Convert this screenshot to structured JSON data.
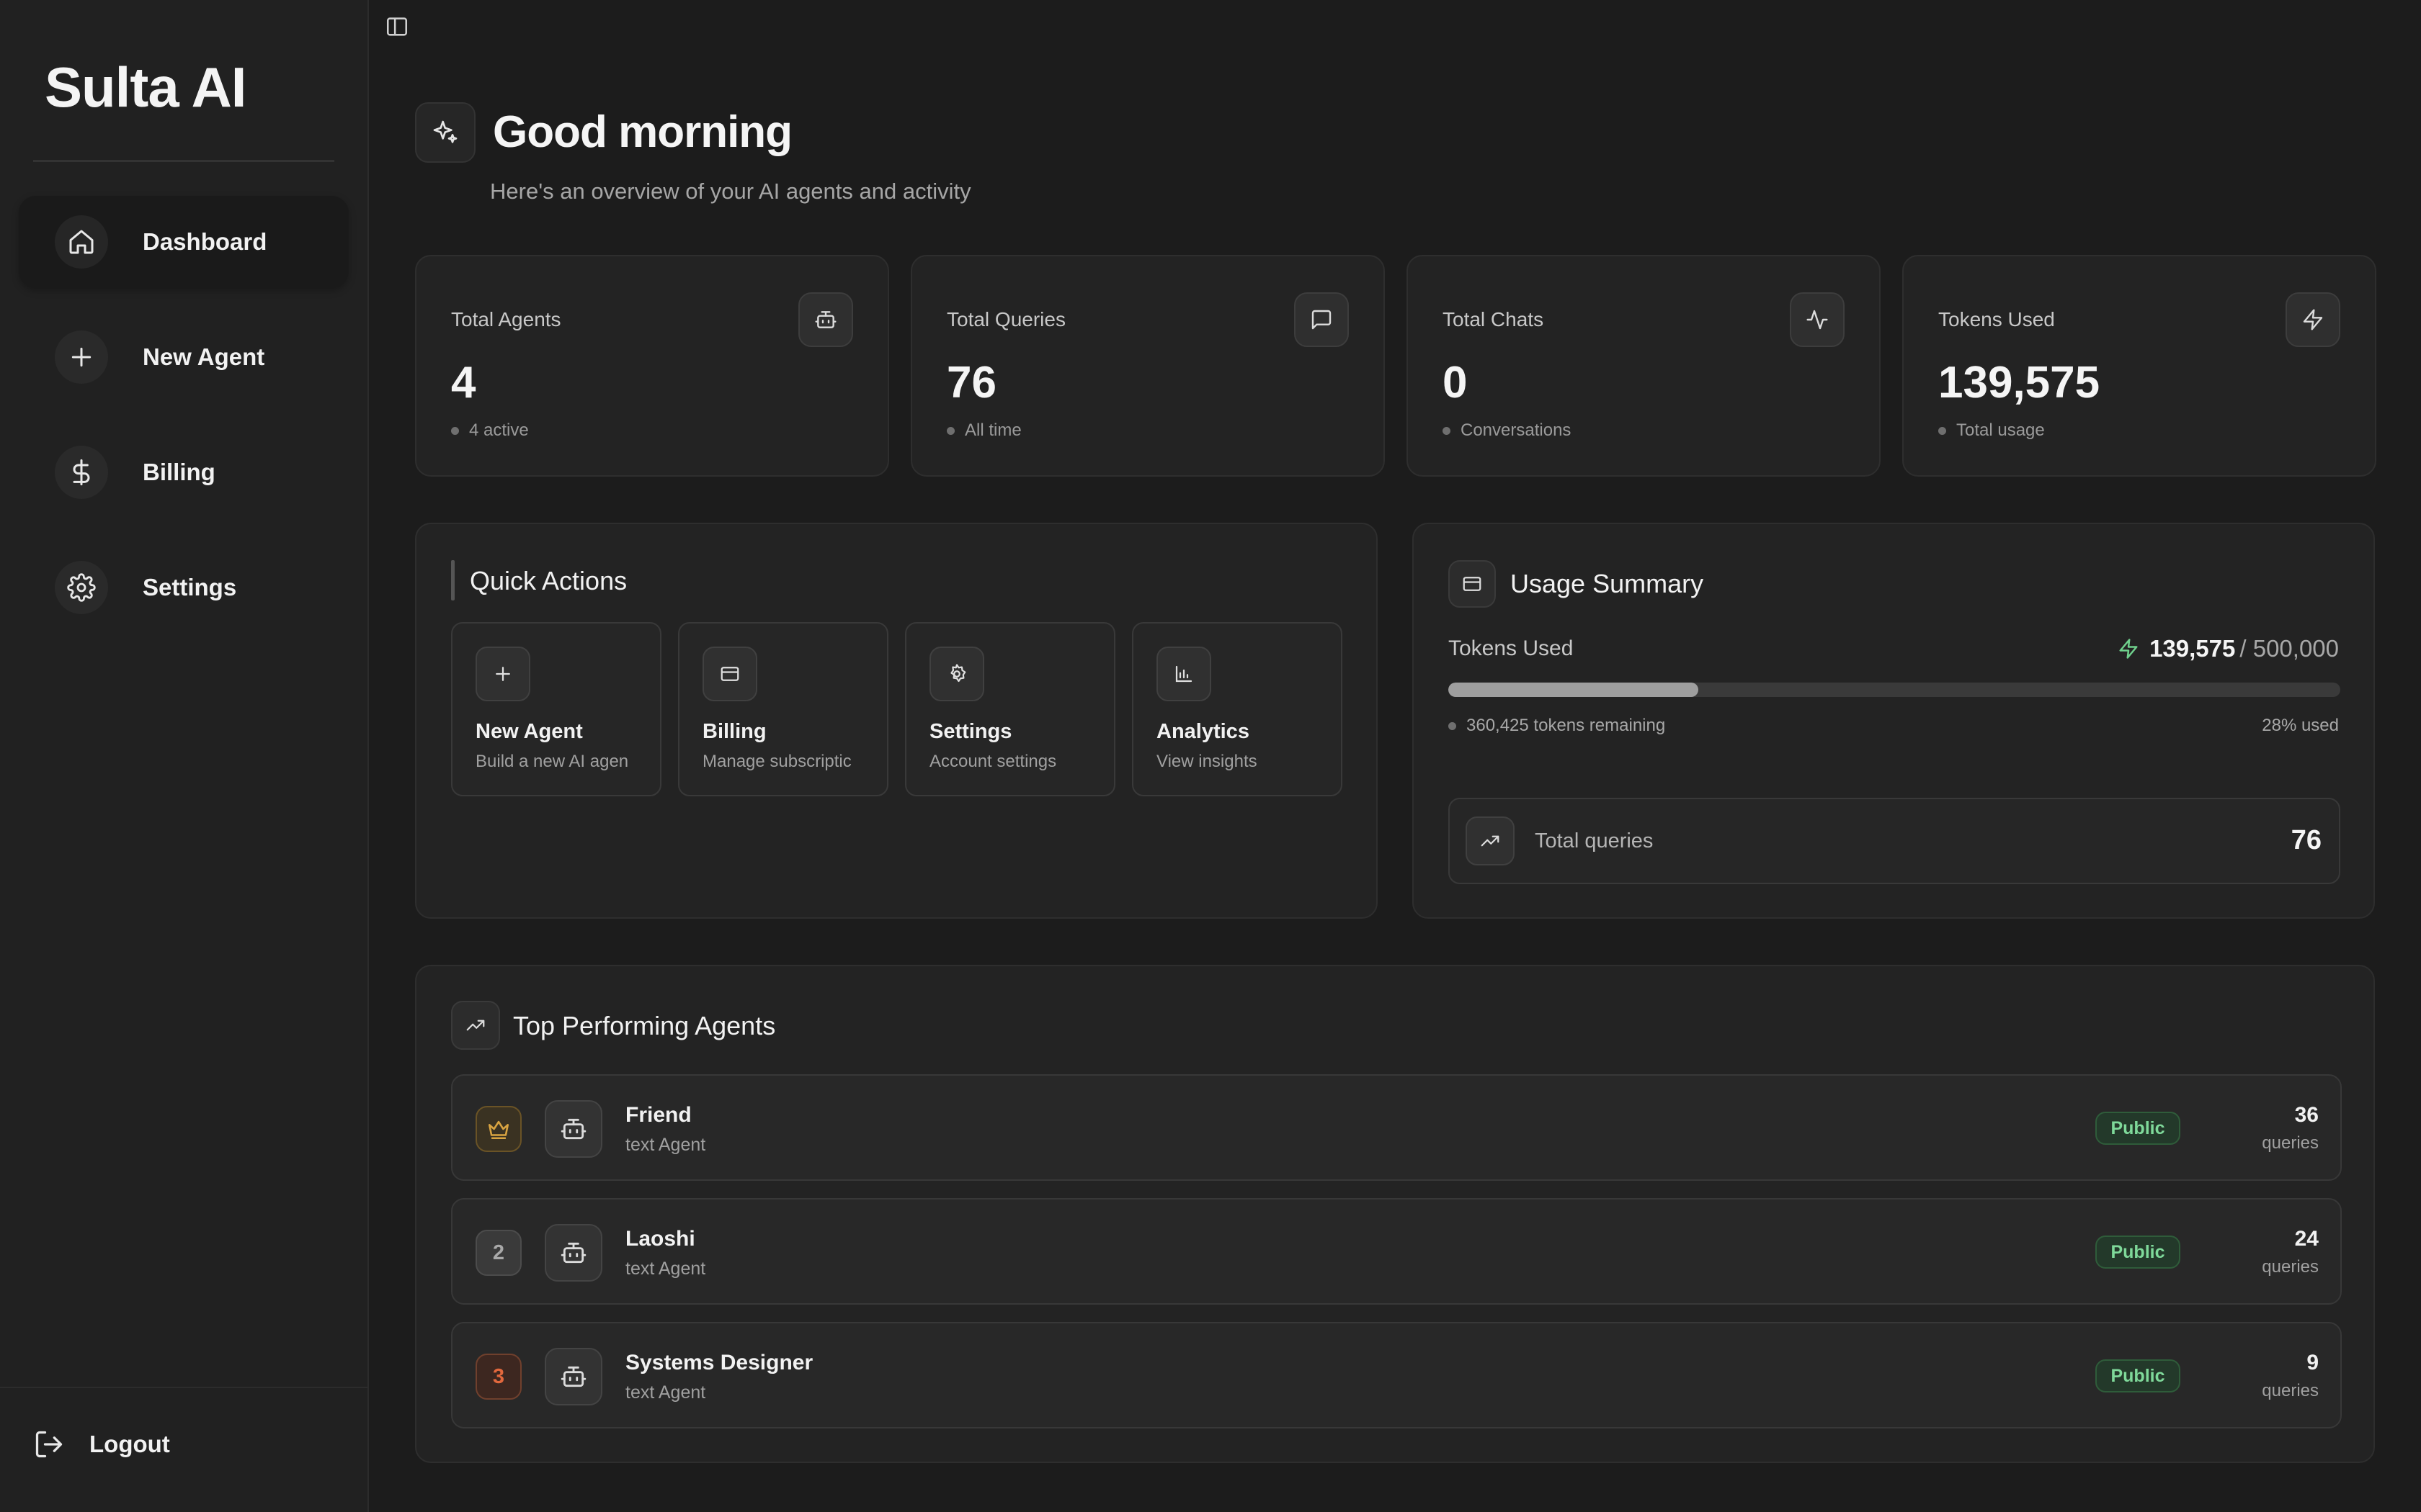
{
  "app": {
    "brand": "Sulta AI"
  },
  "sidebar": {
    "items": [
      {
        "label": "Dashboard",
        "icon": "home-icon",
        "active": true
      },
      {
        "label": "New Agent",
        "icon": "plus-icon",
        "active": false
      },
      {
        "label": "Billing",
        "icon": "dollar-icon",
        "active": false
      },
      {
        "label": "Settings",
        "icon": "gear-icon",
        "active": false
      }
    ],
    "logout_label": "Logout"
  },
  "header": {
    "greeting": "Good morning",
    "subtitle": "Here's an overview of your AI agents and activity"
  },
  "stats": [
    {
      "label": "Total Agents",
      "value": "4",
      "note": "4 active",
      "icon": "robot-icon"
    },
    {
      "label": "Total Queries",
      "value": "76",
      "note": "All time",
      "icon": "message-icon"
    },
    {
      "label": "Total Chats",
      "value": "0",
      "note": "Conversations",
      "icon": "activity-icon"
    },
    {
      "label": "Tokens Used",
      "value": "139,575",
      "note": "Total usage",
      "icon": "zap-icon"
    }
  ],
  "quick_actions": {
    "title": "Quick Actions",
    "items": [
      {
        "title": "New Agent",
        "subtitle": "Build a new AI agen",
        "icon": "plus-icon"
      },
      {
        "title": "Billing",
        "subtitle": "Manage subscriptic",
        "icon": "credit-card-icon"
      },
      {
        "title": "Settings",
        "subtitle": "Account settings",
        "icon": "gear-icon"
      },
      {
        "title": "Analytics",
        "subtitle": "View insights",
        "icon": "bar-chart-icon"
      }
    ]
  },
  "usage": {
    "title": "Usage Summary",
    "tokens_label": "Tokens Used",
    "tokens_used": "139,575",
    "tokens_total": "/ 500,000",
    "progress_fraction": 0.28,
    "remaining": "360,425 tokens remaining",
    "percent_used": "28% used",
    "total_queries_label": "Total queries",
    "total_queries_value": "76"
  },
  "top_agents": {
    "title": "Top Performing Agents",
    "rows": [
      {
        "rank": "",
        "rank_style": "gold",
        "name": "Friend",
        "type": "text Agent",
        "badge": "Public",
        "count": "36",
        "unit": "queries"
      },
      {
        "rank": "2",
        "rank_style": "silver",
        "name": "Laoshi",
        "type": "text Agent",
        "badge": "Public",
        "count": "24",
        "unit": "queries"
      },
      {
        "rank": "3",
        "rank_style": "bronze",
        "name": "Systems Designer",
        "type": "text Agent",
        "badge": "Public",
        "count": "9",
        "unit": "queries"
      }
    ]
  },
  "colors": {
    "background": "#1c1c1c",
    "sidebar": "#212121",
    "card": "#232323",
    "badge_green": "#7fd99a",
    "gold": "#d9a441",
    "bronze": "#e2683d"
  }
}
